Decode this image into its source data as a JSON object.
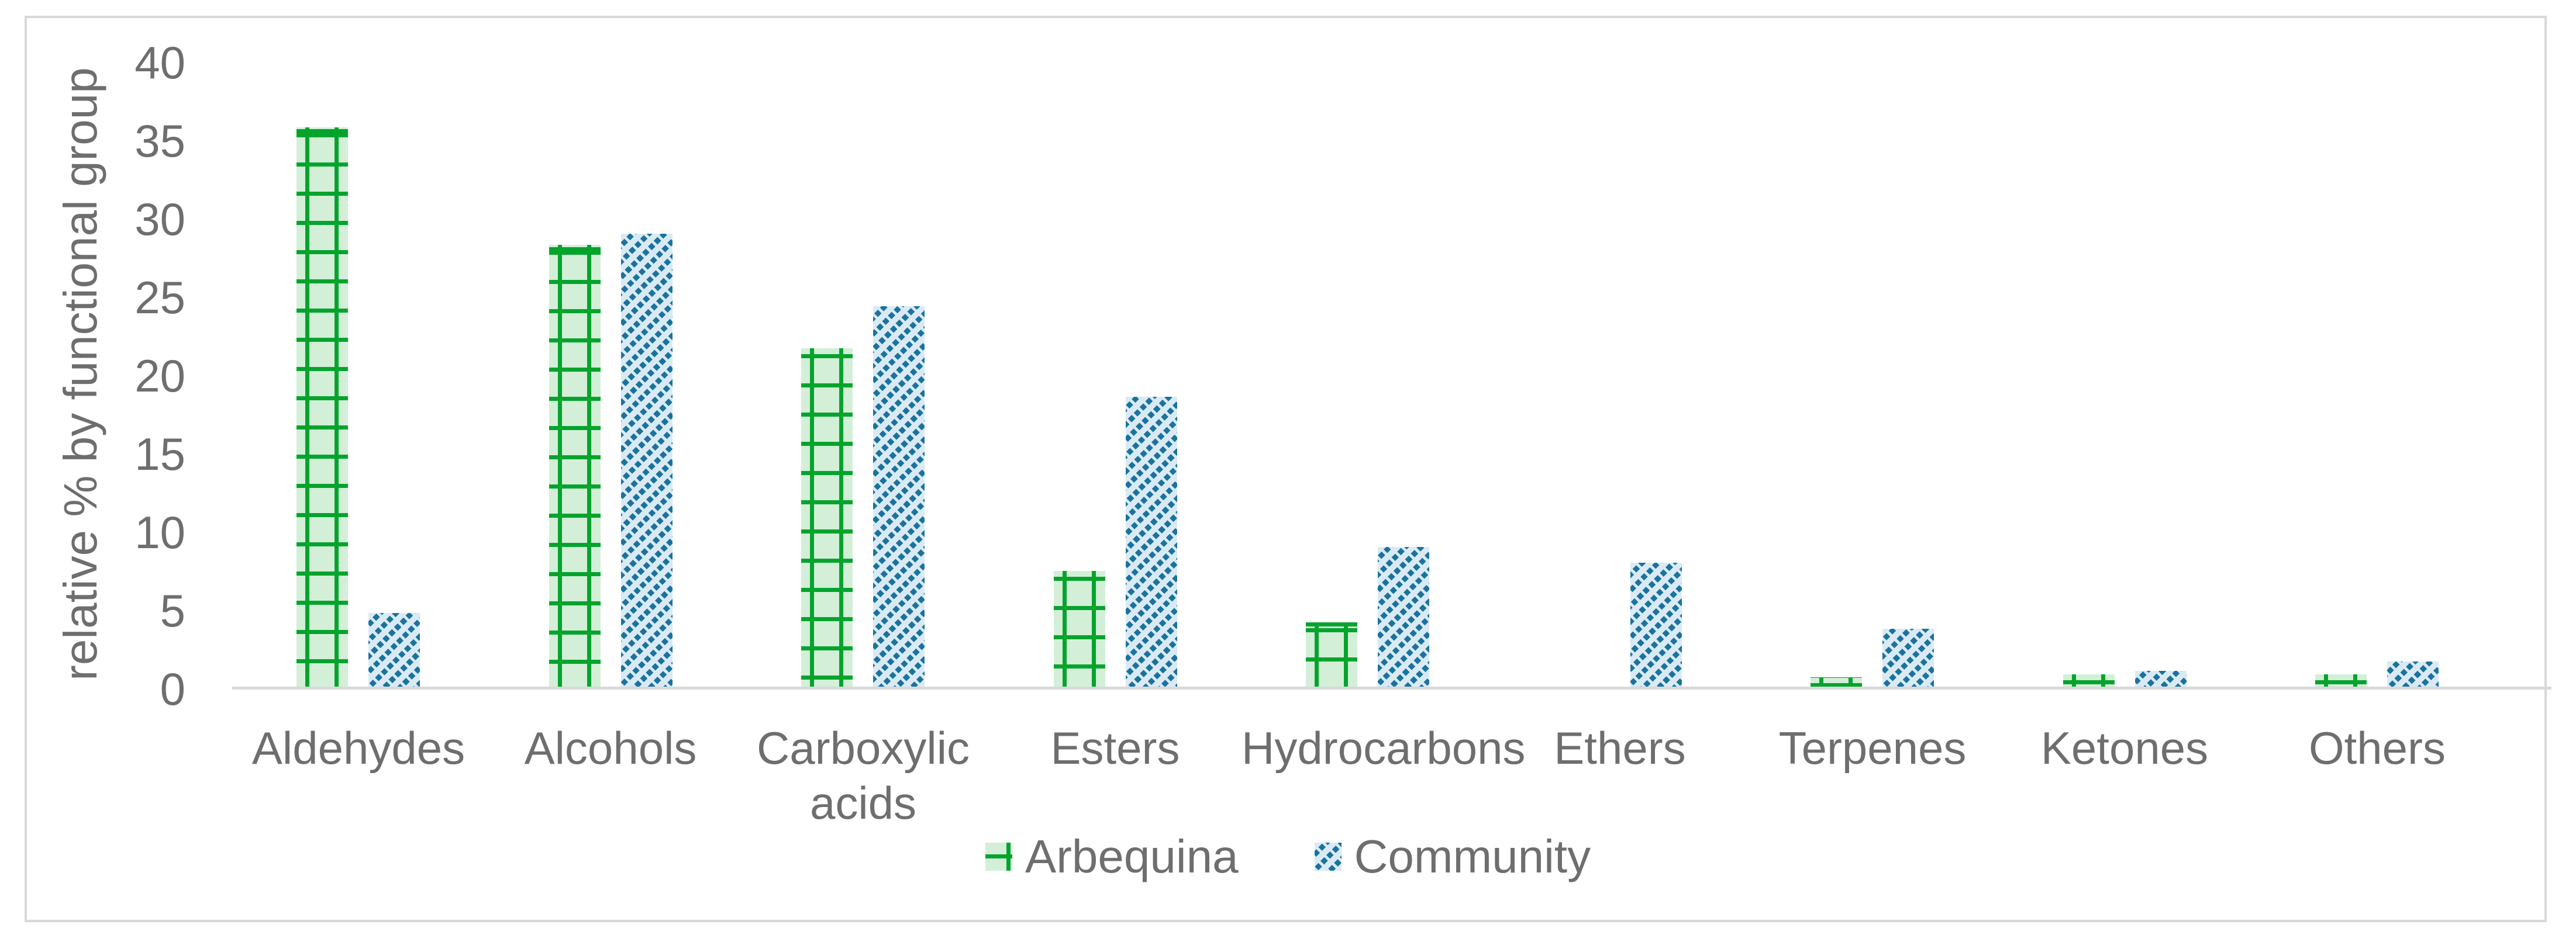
{
  "chart_data": {
    "type": "bar",
    "title": "",
    "xlabel": "",
    "ylabel": "relative % by functional group",
    "ylim": [
      0,
      40
    ],
    "yticks": [
      0,
      5,
      10,
      15,
      20,
      25,
      30,
      35,
      40
    ],
    "grid": false,
    "legend_position": "bottom-center",
    "categories": [
      "Aldehydes",
      "Alcohols",
      "Carboxylic acids",
      "Esters",
      "Hydrocarbons",
      "Ethers",
      "Terpenes",
      "Ketones",
      "Others"
    ],
    "series": [
      {
        "name": "Arbequina",
        "values": [
          35.7,
          28.2,
          21.6,
          7.4,
          4.1,
          0,
          0.6,
          0.8,
          0.8
        ],
        "fill_color": "#d3efd8",
        "pattern_color": "#04a42c",
        "pattern": "grid"
      },
      {
        "name": "Community",
        "values": [
          4.7,
          28.9,
          24.3,
          18.5,
          8.9,
          7.9,
          3.7,
          1.0,
          1.6
        ],
        "fill_color": "#d9eaf5",
        "pattern_color": "#1a739f",
        "pattern": "diagonal-dashed"
      }
    ]
  },
  "legend": {
    "items": [
      {
        "label": "Arbequina"
      },
      {
        "label": "Community"
      }
    ]
  },
  "colors": {
    "axis_line": "#d9d9d9",
    "frame_border": "#d8d8d8",
    "text": "#6e6e6e",
    "background": "#ffffff"
  }
}
